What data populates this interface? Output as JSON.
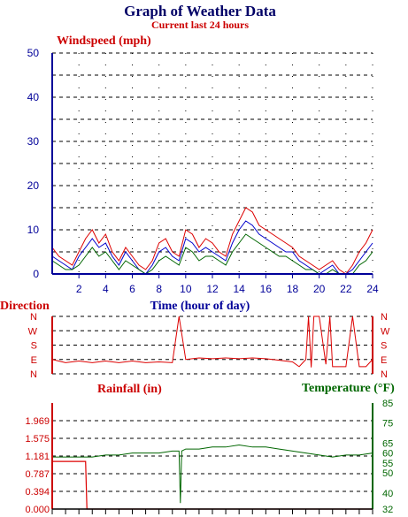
{
  "title": "Graph of Weather Data",
  "subtitle": "Current last 24 hours",
  "colors": {
    "red": "#dd0000",
    "blue": "#0000cc",
    "green": "#006600",
    "navy": "#000066"
  },
  "chart_data": [
    {
      "type": "line",
      "title": "Windspeed (mph)",
      "xlabel": "Time (hour of day)",
      "ylabel": "Windspeed (mph)",
      "xlim": [
        0,
        24
      ],
      "ylim": [
        0,
        50
      ],
      "y_ticks": [
        "0",
        "10",
        "20",
        "30",
        "40",
        "50"
      ],
      "x_ticks": [
        "2",
        "4",
        "6",
        "8",
        "10",
        "12",
        "14",
        "16",
        "18",
        "20",
        "22",
        "24"
      ],
      "grid": true,
      "x": [
        0,
        0.5,
        1,
        1.5,
        2,
        2.5,
        3,
        3.5,
        4,
        4.5,
        5,
        5.5,
        6,
        6.5,
        7,
        7.5,
        8,
        8.5,
        9,
        9.5,
        10,
        10.5,
        11,
        11.5,
        12,
        12.5,
        13,
        13.5,
        14,
        14.5,
        15,
        15.5,
        16,
        16.5,
        17,
        17.5,
        18,
        18.5,
        19,
        19.5,
        20,
        20.5,
        21,
        21.5,
        22,
        22.5,
        23,
        23.5,
        24
      ],
      "series": [
        {
          "color": "red",
          "values": [
            6,
            4,
            3,
            2,
            5,
            8,
            10,
            7,
            9,
            5,
            3,
            6,
            4,
            2,
            1,
            3,
            7,
            8,
            5,
            4,
            10,
            9,
            6,
            8,
            7,
            5,
            4,
            9,
            12,
            15,
            14,
            11,
            10,
            9,
            8,
            7,
            6,
            4,
            3,
            2,
            1,
            2,
            3,
            1,
            0,
            2,
            5,
            7,
            10
          ]
        },
        {
          "color": "blue",
          "values": [
            4,
            3,
            2,
            1,
            4,
            6,
            8,
            6,
            7,
            4,
            2,
            5,
            3,
            1,
            0,
            2,
            5,
            6,
            4,
            3,
            8,
            7,
            5,
            6,
            5,
            4,
            3,
            7,
            10,
            12,
            11,
            9,
            8,
            7,
            6,
            5,
            5,
            3,
            2,
            1,
            0,
            1,
            2,
            0,
            0,
            1,
            3,
            5,
            7
          ]
        },
        {
          "color": "green",
          "values": [
            3,
            2,
            1,
            1,
            2,
            4,
            6,
            4,
            5,
            3,
            1,
            3,
            2,
            1,
            0,
            1,
            3,
            4,
            3,
            2,
            6,
            5,
            3,
            4,
            4,
            3,
            2,
            5,
            7,
            9,
            8,
            7,
            6,
            5,
            4,
            4,
            3,
            2,
            1,
            1,
            0,
            0,
            1,
            0,
            0,
            0,
            2,
            3,
            5
          ]
        }
      ]
    },
    {
      "type": "line",
      "title": "Direction",
      "xlim": [
        0,
        24
      ],
      "y_ticks": [
        "N",
        "W",
        "S",
        "E",
        "N"
      ],
      "grid": true,
      "x": [
        0,
        1,
        2,
        3,
        4,
        5,
        6,
        7,
        8,
        9,
        9.5,
        10,
        11,
        12,
        13,
        14,
        15,
        16,
        17,
        18,
        18.5,
        19,
        19.2,
        19.4,
        19.6,
        20,
        20.5,
        20.8,
        21,
        21.5,
        22,
        22.5,
        23,
        23.5,
        24
      ],
      "series": [
        {
          "color": "red",
          "values": [
            90,
            70,
            80,
            70,
            80,
            70,
            80,
            70,
            75,
            70,
            360,
            90,
            100,
            95,
            100,
            95,
            100,
            95,
            85,
            75,
            45,
            90,
            360,
            40,
            360,
            360,
            60,
            360,
            45,
            45,
            45,
            360,
            45,
            45,
            90
          ]
        }
      ]
    },
    {
      "type": "line",
      "title": "Rainfall (in)",
      "ylabel": "Rainfall (in)",
      "y2label": "Temperature (°F)",
      "xlim": [
        0,
        24
      ],
      "ylim": [
        0,
        2.362
      ],
      "y2lim": [
        32,
        85
      ],
      "y_ticks": [
        "0.000",
        "0.394",
        "0.787",
        "1.181",
        "1.575",
        "1.969"
      ],
      "y2_ticks": [
        "32",
        "40",
        "50",
        "55",
        "60",
        "65",
        "75",
        "85"
      ],
      "grid": true,
      "series": [
        {
          "name": "Rainfall (in)",
          "color": "red",
          "x": [
            0,
            2.5,
            2.6,
            24
          ],
          "values": [
            1.06,
            1.06,
            0,
            0
          ]
        },
        {
          "name": "Temperature (°F)",
          "color": "green",
          "x": [
            0,
            1,
            2,
            3,
            4,
            5,
            6,
            7,
            8,
            9,
            9.5,
            9.6,
            9.7,
            10,
            11,
            12,
            13,
            14,
            15,
            16,
            17,
            18,
            19,
            20,
            21,
            22,
            23,
            24
          ],
          "values": [
            58,
            58,
            58,
            58,
            59,
            59,
            60,
            60,
            60,
            61,
            61,
            35,
            61,
            62,
            62,
            63,
            63,
            64,
            63,
            63,
            62,
            61,
            60,
            59,
            58,
            59,
            59,
            60
          ]
        }
      ]
    }
  ]
}
